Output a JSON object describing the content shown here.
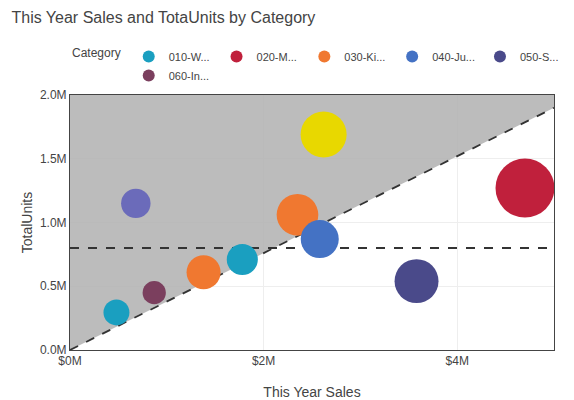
{
  "chart_data": {
    "type": "scatter",
    "title": "This Year Sales and TotaUnits by Category",
    "x_label": "This Year Sales",
    "y_label": "TotalUnits",
    "xlim": [
      0,
      5000000
    ],
    "ylim": [
      0,
      2000000
    ],
    "xticks": [
      {
        "value": 0,
        "label": "$0M"
      },
      {
        "value": 2000000,
        "label": "$2M"
      },
      {
        "value": 4000000,
        "label": "$4M"
      }
    ],
    "yticks": [
      {
        "value": 0,
        "label": "0.0M"
      },
      {
        "value": 500000,
        "label": "0.5M"
      },
      {
        "value": 1000000,
        "label": "1.0M"
      },
      {
        "value": 1500000,
        "label": "1.5M"
      },
      {
        "value": 2000000,
        "label": "2.0M"
      }
    ],
    "grid": true,
    "legend": "top",
    "legend_title": "Category",
    "series": [
      {
        "type": "area",
        "color": "#b0b0b0",
        "x": [
          0,
          0,
          5000000,
          5000000,
          0
        ],
        "values": [
          0,
          2000000,
          2000000,
          1900000,
          0
        ]
      },
      {
        "type": "line",
        "color": "#333333",
        "line_style": "dashed",
        "x": [
          0,
          5000000
        ],
        "values": [
          0,
          1900000
        ]
      },
      {
        "type": "line",
        "color": "#333333",
        "line_style": "dashed",
        "x": [
          0,
          5000000
        ],
        "values": [
          800000,
          800000
        ]
      },
      {
        "type": "scatter",
        "name": "010-W...",
        "color": "#1a9fc0",
        "x": [
          480000,
          1780000
        ],
        "values": [
          295000,
          710000
        ],
        "sizes": [
          350,
          500
        ]
      },
      {
        "type": "scatter",
        "name": "020-M...",
        "color": "#c0203c",
        "x": [
          4700000
        ],
        "values": [
          1270000
        ],
        "sizes": [
          1800
        ]
      },
      {
        "type": "scatter",
        "name": "030-Ki...",
        "color": "#f07830",
        "x": [
          1380000,
          2350000
        ],
        "values": [
          610000,
          1060000
        ],
        "sizes": [
          600,
          900
        ]
      },
      {
        "type": "scatter",
        "name": "040-Ju...",
        "color": "#4472c4",
        "x": [
          2580000
        ],
        "values": [
          870000
        ],
        "sizes": [
          750
        ]
      },
      {
        "type": "scatter",
        "name": "050-S...",
        "color": "#4a4a8a",
        "x": [
          3580000
        ],
        "values": [
          540000
        ],
        "sizes": [
          1000
        ]
      },
      {
        "type": "scatter",
        "name": "060-In...",
        "color": "#7b3f5e",
        "x": [
          870000
        ],
        "values": [
          450000
        ],
        "sizes": [
          280
        ]
      },
      {
        "type": "scatter",
        "color": "#6b6bba",
        "x": [
          680000
        ],
        "values": [
          1150000
        ],
        "sizes": [
          450
        ]
      },
      {
        "type": "scatter",
        "color": "#e8d800",
        "x": [
          2620000
        ],
        "values": [
          1690000
        ],
        "sizes": [
          1100
        ]
      }
    ]
  }
}
